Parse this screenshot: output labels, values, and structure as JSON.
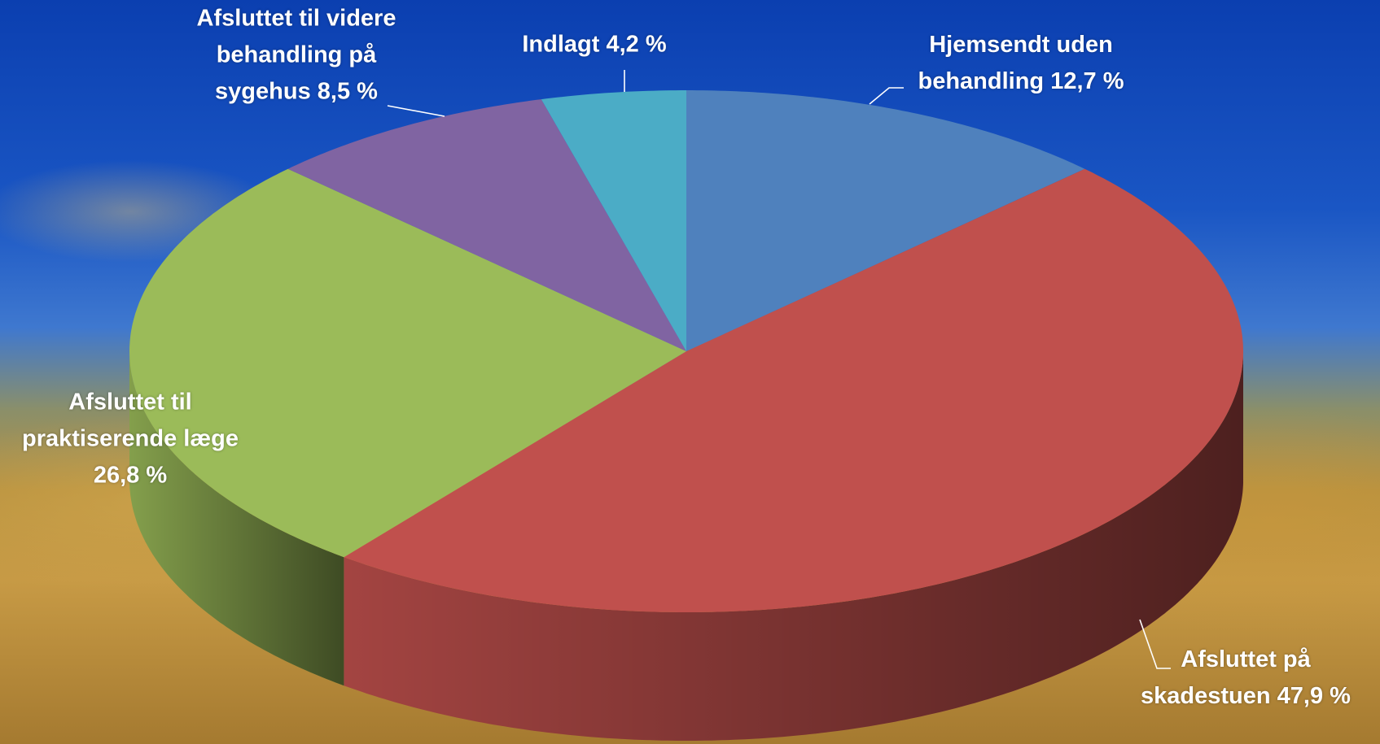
{
  "chart_data": {
    "type": "pie",
    "categories": [
      "Hjemsendt uden behandling",
      "Afsluttet på skadestuen",
      "Afsluttet til praktiserende læge",
      "Afsluttet til videre behandling på sygehus",
      "Indlagt"
    ],
    "values": [
      12.7,
      47.9,
      26.8,
      8.5,
      4.2
    ],
    "value_labels": [
      "12,7 %",
      "47,9 %",
      "26,8 %",
      "8,5 %",
      "4,2 %"
    ],
    "colors": [
      "#4f81bd",
      "#c0504d",
      "#9bbb59",
      "#8064a2",
      "#4bacc6"
    ]
  }
}
